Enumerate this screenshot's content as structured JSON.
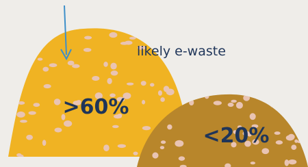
{
  "annotation": "likely e-waste",
  "mounds": [
    {
      "label": ">60%"
    },
    {
      "label": "<20%"
    }
  ]
}
